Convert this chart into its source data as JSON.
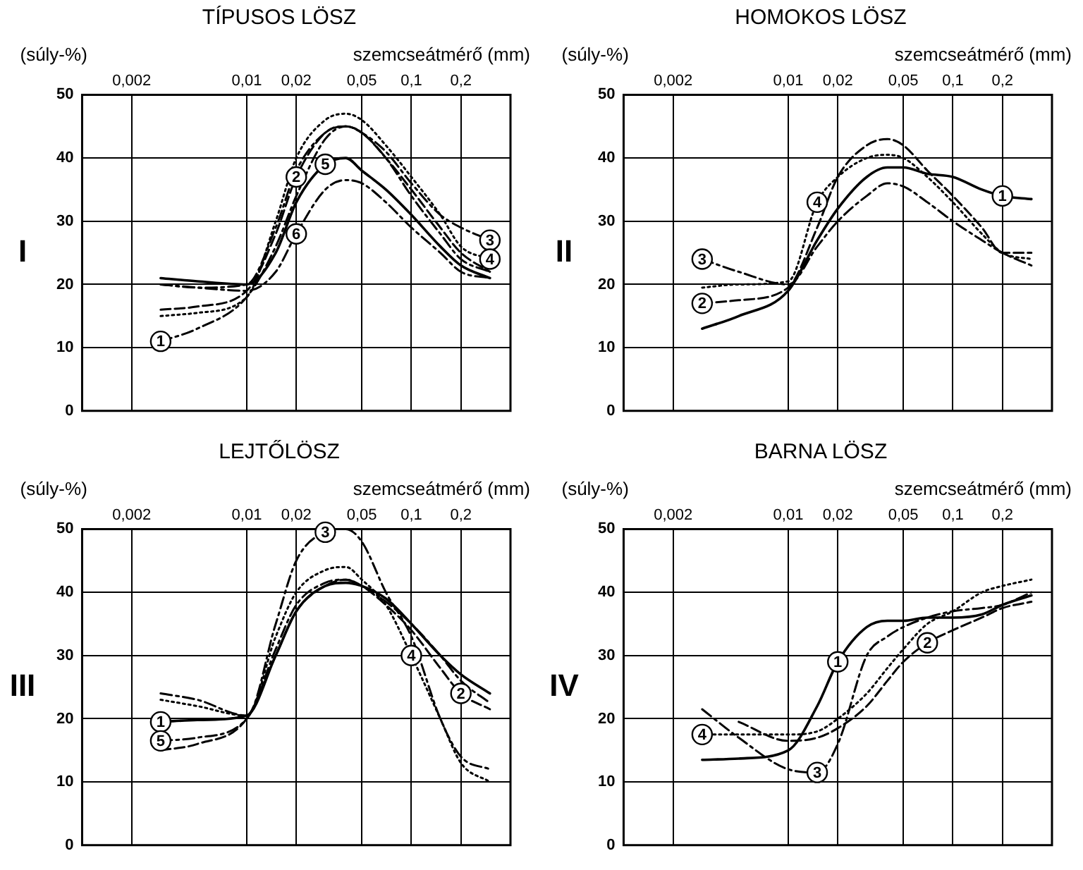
{
  "chart_data": [
    {
      "type": "line",
      "title": "TÍPUSOS LÖSZ",
      "subtitle": "I",
      "xlabel": "szemcseátmérő (mm)",
      "ylabel": "(súly-%)",
      "log": "x",
      "grid": true,
      "marker": "none",
      "x": [
        0.003,
        0.005,
        0.01,
        0.015,
        0.02,
        0.03,
        0.04,
        0.05,
        0.07,
        0.1,
        0.15,
        0.2,
        0.3
      ],
      "xlim": [
        0.001,
        0.4
      ],
      "xticks": [
        {
          "value": 0.002,
          "label": "0,002"
        },
        {
          "value": 0.01,
          "label": "0,01"
        },
        {
          "value": 0.02,
          "label": "0,02"
        },
        {
          "value": 0.05,
          "label": "0,05"
        },
        {
          "value": 0.1,
          "label": "0,1"
        },
        {
          "value": 0.2,
          "label": "0,2"
        }
      ],
      "ylim": [
        0,
        50
      ],
      "yticks": [
        0,
        10,
        20,
        30,
        40,
        50
      ],
      "series": [
        {
          "name": "1",
          "color": "#000000",
          "line_style": "dashdot",
          "values": [
            11,
            13,
            18,
            26,
            34,
            43,
            45,
            44,
            40,
            34,
            28,
            24,
            22
          ]
        },
        {
          "name": "2",
          "color": "#000000",
          "line_style": "dashed",
          "values": [
            16,
            16.5,
            19,
            28,
            37,
            44,
            45,
            44,
            40,
            35,
            29,
            25,
            22
          ]
        },
        {
          "name": "3",
          "color": "#000000",
          "line_style": "dashdot",
          "values": [
            20,
            19.5,
            20,
            29,
            38,
            44,
            45,
            44,
            41,
            36,
            31,
            29,
            27
          ]
        },
        {
          "name": "4",
          "color": "#000000",
          "line_style": "dotted",
          "values": [
            15,
            15.5,
            18,
            30,
            40,
            46,
            47,
            46,
            42,
            37,
            31,
            26,
            24
          ]
        },
        {
          "name": "5",
          "color": "#000000",
          "line_style": "solid",
          "values": [
            21,
            20.5,
            20,
            25,
            33,
            39,
            40,
            38,
            35,
            31,
            26,
            23,
            21
          ]
        },
        {
          "name": "6",
          "color": "#000000",
          "line_style": "dashdot",
          "values": [
            20,
            19.5,
            19,
            22,
            28,
            35,
            36.5,
            36,
            33,
            29,
            25,
            22,
            21
          ]
        }
      ]
    },
    {
      "type": "line",
      "title": "HOMOKOS LÖSZ",
      "subtitle": "II",
      "xlabel": "szemcseátmérő (mm)",
      "ylabel": "(súly-%)",
      "log": "x",
      "grid": true,
      "marker": "none",
      "x": [
        0.003,
        0.005,
        0.01,
        0.015,
        0.02,
        0.03,
        0.04,
        0.05,
        0.07,
        0.1,
        0.15,
        0.2,
        0.3
      ],
      "xlim": [
        0.001,
        0.4
      ],
      "xticks": [
        {
          "value": 0.002,
          "label": "0,002"
        },
        {
          "value": 0.01,
          "label": "0,01"
        },
        {
          "value": 0.02,
          "label": "0,02"
        },
        {
          "value": 0.05,
          "label": "0,05"
        },
        {
          "value": 0.1,
          "label": "0,1"
        },
        {
          "value": 0.2,
          "label": "0,2"
        }
      ],
      "ylim": [
        0,
        50
      ],
      "yticks": [
        0,
        10,
        20,
        30,
        40,
        50
      ],
      "series": [
        {
          "name": "1",
          "color": "#000000",
          "line_style": "solid",
          "values": [
            13,
            15,
            19,
            27,
            32,
            37,
            38.5,
            38.5,
            37.5,
            37,
            35,
            34,
            33.5
          ]
        },
        {
          "name": "2",
          "color": "#000000",
          "line_style": "dashed",
          "values": [
            17,
            17.5,
            19.5,
            29,
            37,
            42,
            43,
            42,
            38,
            34,
            29,
            25,
            25
          ]
        },
        {
          "name": "3",
          "color": "#000000",
          "line_style": "dashdot",
          "values": [
            24,
            22,
            20,
            26,
            30,
            34,
            36,
            35.5,
            33,
            30,
            27,
            25,
            23
          ]
        },
        {
          "name": "4",
          "color": "#000000",
          "line_style": "dotted",
          "values": [
            19.5,
            20,
            20.5,
            33,
            37,
            40,
            40.5,
            40,
            37,
            33,
            28,
            25,
            24
          ]
        }
      ]
    },
    {
      "type": "line",
      "title": "LEJTŐLÖSZ",
      "subtitle": "III",
      "xlabel": "szemcseátmérő (mm)",
      "ylabel": "(súly-%)",
      "log": "x",
      "grid": true,
      "marker": "none",
      "x": [
        0.003,
        0.005,
        0.01,
        0.015,
        0.02,
        0.03,
        0.04,
        0.05,
        0.07,
        0.1,
        0.15,
        0.2,
        0.3
      ],
      "xlim": [
        0.001,
        0.4
      ],
      "xticks": [
        {
          "value": 0.002,
          "label": "0,002"
        },
        {
          "value": 0.01,
          "label": "0,01"
        },
        {
          "value": 0.02,
          "label": "0,02"
        },
        {
          "value": 0.05,
          "label": "0,05"
        },
        {
          "value": 0.1,
          "label": "0,1"
        },
        {
          "value": 0.2,
          "label": "0,2"
        }
      ],
      "ylim": [
        0,
        50
      ],
      "yticks": [
        0,
        10,
        20,
        30,
        40,
        50
      ],
      "series": [
        {
          "name": "1",
          "color": "#000000",
          "line_style": "solid",
          "values": [
            19.5,
            19.8,
            20.5,
            30,
            37,
            41,
            41.5,
            41,
            39,
            35,
            30,
            27,
            24
          ]
        },
        {
          "name": "2",
          "color": "#000000",
          "line_style": "dashed",
          "values": [
            15,
            16,
            20,
            30,
            37,
            41,
            42,
            41,
            38,
            34,
            28,
            24,
            21.5
          ]
        },
        {
          "name": "3",
          "color": "#000000",
          "line_style": "dashdot",
          "values": [
            24,
            23,
            20.5,
            35,
            45,
            49.5,
            50,
            48,
            40,
            33,
            20,
            14,
            12
          ]
        },
        {
          "name": "4",
          "color": "#000000",
          "line_style": "dotted",
          "values": [
            23,
            22,
            20.5,
            33,
            40,
            43.5,
            44,
            42,
            38,
            30,
            20,
            13,
            10
          ]
        },
        {
          "name": "5",
          "color": "#000000",
          "line_style": "dashdot",
          "values": [
            16.5,
            17,
            20,
            31,
            38,
            41.5,
            42,
            41,
            38.5,
            35,
            30,
            26,
            22.5
          ]
        }
      ]
    },
    {
      "type": "line",
      "title": "BARNA LÖSZ",
      "subtitle": "IV",
      "xlabel": "szemcseátmérő (mm)",
      "ylabel": "(súly-%)",
      "log": "x",
      "grid": true,
      "marker": "none",
      "x": [
        0.003,
        0.005,
        0.01,
        0.015,
        0.02,
        0.03,
        0.04,
        0.05,
        0.07,
        0.1,
        0.15,
        0.2,
        0.3
      ],
      "xlim": [
        0.001,
        0.4
      ],
      "xticks": [
        {
          "value": 0.002,
          "label": "0,002"
        },
        {
          "value": 0.01,
          "label": "0,01"
        },
        {
          "value": 0.02,
          "label": "0,02"
        },
        {
          "value": 0.05,
          "label": "0,05"
        },
        {
          "value": 0.1,
          "label": "0,1"
        },
        {
          "value": 0.2,
          "label": "0,2"
        }
      ],
      "ylim": [
        0,
        50
      ],
      "yticks": [
        0,
        10,
        20,
        30,
        40,
        50
      ],
      "series": [
        {
          "name": "1",
          "color": "#000000",
          "line_style": "solid",
          "values": [
            13.5,
            13.7,
            15,
            22,
            29,
            34.5,
            35.5,
            35.5,
            36,
            36,
            36.5,
            38,
            39.5
          ]
        },
        {
          "name": "2",
          "color": "#000000",
          "line_style": "dashed",
          "values": [
            null,
            19.5,
            16.5,
            17,
            18.5,
            22,
            26,
            29,
            32,
            34,
            36,
            37.5,
            38.5
          ]
        },
        {
          "name": "3",
          "color": "#000000",
          "line_style": "dashdot",
          "values": [
            21.5,
            17,
            12,
            11.5,
            16,
            30,
            33,
            34.5,
            36,
            37,
            37.5,
            38,
            40
          ]
        },
        {
          "name": "4",
          "color": "#000000",
          "line_style": "dotted",
          "values": [
            17.5,
            17.5,
            17.5,
            18,
            20,
            24,
            28,
            31,
            35,
            37,
            40,
            41,
            42
          ]
        }
      ]
    }
  ]
}
